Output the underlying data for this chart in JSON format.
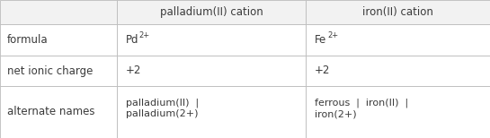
{
  "col_headers": [
    "",
    "palladium(II) cation",
    "iron(II) cation"
  ],
  "row_labels": [
    "formula",
    "net ionic charge",
    "alternate names"
  ],
  "cells": [
    [
      [
        "Pd",
        "2+"
      ],
      [
        "Fe",
        "2+"
      ]
    ],
    [
      "+2",
      "+2"
    ],
    [
      "palladium(II)  |\npalladium(2+)",
      "ferrous  |  iron(II)  |\niron(2+)"
    ]
  ],
  "col_boundaries": [
    0,
    130,
    340,
    545
  ],
  "row_boundaries": [
    0,
    27,
    62,
    96,
    154
  ],
  "bg_header": "#f2f2f2",
  "bg_body": "#ffffff",
  "text_color": "#3a3a3a",
  "border_color": "#bbbbbb",
  "font_size": 8.5,
  "header_font_size": 8.5
}
